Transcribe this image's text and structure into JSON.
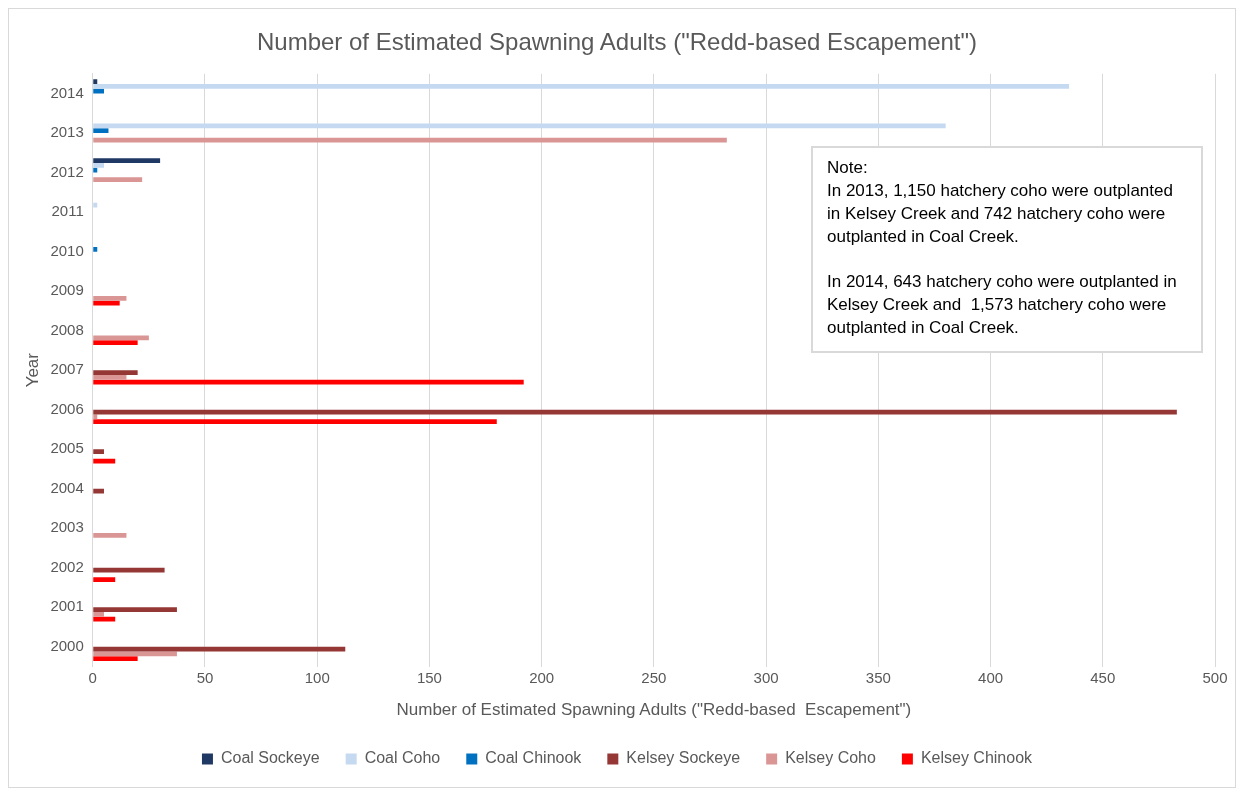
{
  "chart_data": {
    "type": "bar",
    "orientation": "horizontal",
    "title": "Number of Estimated Spawning Adults (\"Redd-based Escapement\")",
    "xlabel": "Number of Estimated Spawning Adults (\"Redd-based  Escapement\")",
    "ylabel": "Year",
    "categories": [
      "2014",
      "2013",
      "2012",
      "2011",
      "2010",
      "2009",
      "2008",
      "2007",
      "2006",
      "2005",
      "2004",
      "2003",
      "2002",
      "2001",
      "2000"
    ],
    "series": [
      {
        "name": "Coal Sockeye",
        "color": "#1f3864",
        "values": [
          2,
          null,
          30,
          null,
          null,
          null,
          null,
          null,
          null,
          null,
          null,
          null,
          null,
          null,
          null
        ]
      },
      {
        "name": "Coal Coho",
        "color": "#c5d9f1",
        "values": [
          435,
          380,
          5,
          2,
          null,
          null,
          null,
          null,
          null,
          null,
          null,
          null,
          null,
          null,
          null
        ]
      },
      {
        "name": "Coal Chinook",
        "color": "#0070c0",
        "values": [
          5,
          7,
          2,
          null,
          2,
          null,
          null,
          null,
          null,
          null,
          null,
          null,
          null,
          null,
          null
        ]
      },
      {
        "name": "Kelsey Sockeye",
        "color": "#953735",
        "values": [
          null,
          null,
          null,
          null,
          null,
          null,
          null,
          20,
          483,
          5,
          5,
          null,
          32,
          37.5,
          112.5
        ]
      },
      {
        "name": "Kelsey Coho",
        "color": "#da9694",
        "values": [
          null,
          282.5,
          22,
          null,
          null,
          15,
          25,
          15,
          2,
          null,
          null,
          15,
          null,
          5,
          37.5
        ]
      },
      {
        "name": "Kelsey Chinook",
        "color": "#ff0000",
        "values": [
          null,
          null,
          null,
          null,
          null,
          12,
          20,
          192,
          180,
          10,
          null,
          null,
          10,
          10,
          20
        ]
      }
    ],
    "xlim": [
      0,
      500
    ],
    "xticks": [
      0,
      50,
      100,
      150,
      200,
      250,
      300,
      350,
      400,
      450,
      500
    ],
    "grid": "x",
    "legend": "bottom",
    "annotations": [
      "Note:",
      "In 2013, 1,150 hatchery coho were outplanted in Kelsey Creek and 742 hatchery coho were outplanted in Coal Creek.",
      "In 2014, 643 hatchery coho were outplanted in Kelsey Creek and  1,573 hatchery coho were outplanted in Coal Creek."
    ]
  }
}
